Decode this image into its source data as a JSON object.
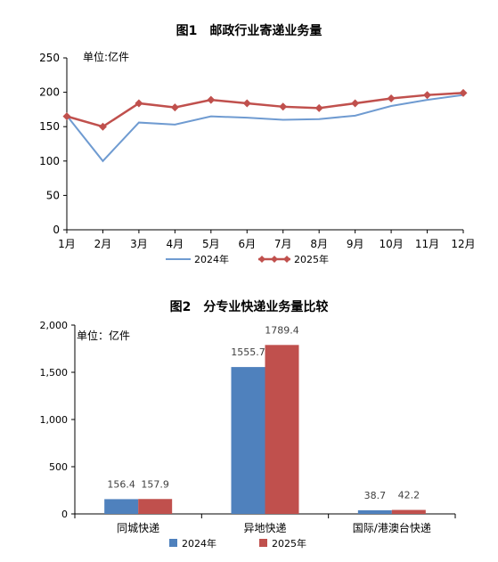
{
  "chart_data": [
    {
      "type": "line",
      "title": "图1　邮政行业寄递业务量",
      "unit": "单位:亿件",
      "categories": [
        "1月",
        "2月",
        "3月",
        "4月",
        "5月",
        "6月",
        "7月",
        "8月",
        "9月",
        "10月",
        "11月",
        "12月"
      ],
      "ylim": [
        0,
        250
      ],
      "yticks": [
        0,
        50,
        100,
        150,
        200,
        250
      ],
      "grid": false,
      "legend": "bottom",
      "series": [
        {
          "name": "2024年",
          "color": "#6f9bd1",
          "marker": "none",
          "values": [
            166,
            100,
            156,
            153,
            165,
            163,
            160,
            161,
            166,
            180,
            189,
            196
          ]
        },
        {
          "name": "2025年",
          "color": "#c0504d",
          "marker": "diamond",
          "values": [
            165,
            150,
            184,
            178,
            189,
            184,
            179,
            177,
            184,
            191,
            196,
            199
          ]
        }
      ]
    },
    {
      "type": "bar",
      "title": "图2　分专业快递业务量比较",
      "unit": "单位：亿件",
      "categories": [
        "同城快递",
        "异地快递",
        "国际/港澳台快递"
      ],
      "ylim": [
        0,
        2000
      ],
      "yticks": [
        "0",
        "500",
        "1,000",
        "1,500",
        "2,000"
      ],
      "ytick_values": [
        0,
        500,
        1000,
        1500,
        2000
      ],
      "grid": false,
      "legend": "bottom",
      "series": [
        {
          "name": "2024年",
          "color": "#4f81bd",
          "values": [
            156.4,
            1555.7,
            38.7
          ]
        },
        {
          "name": "2025年",
          "color": "#c0504d",
          "values": [
            157.9,
            1789.4,
            42.2
          ]
        }
      ]
    }
  ]
}
